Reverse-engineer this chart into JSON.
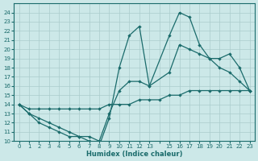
{
  "background_color": "#cce8e8",
  "grid_color": "#aacccc",
  "line_color": "#1a6b6b",
  "xlabel": "Humidex (Indice chaleur)",
  "xlim": [
    -0.5,
    23.5
  ],
  "ylim": [
    10,
    25
  ],
  "xticks": [
    0,
    1,
    2,
    3,
    4,
    5,
    6,
    7,
    8,
    9,
    10,
    11,
    12,
    13,
    14,
    15,
    16,
    17,
    18,
    19,
    20,
    21,
    22,
    23
  ],
  "yticks": [
    10,
    11,
    12,
    13,
    14,
    15,
    16,
    17,
    18,
    19,
    20,
    21,
    22,
    23,
    24
  ],
  "xtick_labels": [
    "0",
    "1",
    "2",
    "3",
    "4",
    "5",
    "6",
    "7",
    "8",
    "9",
    "10",
    "11",
    "12",
    "13",
    "",
    "15",
    "16",
    "17",
    "18",
    "19",
    "20",
    "21",
    "22",
    "23"
  ],
  "line_spiky_x": [
    0,
    1,
    2,
    3,
    4,
    5,
    6,
    7,
    8,
    9,
    10,
    11,
    12,
    13,
    15,
    16,
    17,
    18,
    19,
    20,
    21,
    22,
    23
  ],
  "line_spiky_y": [
    14.0,
    13.0,
    12.0,
    11.5,
    11.0,
    10.5,
    10.5,
    10.0,
    9.5,
    12.5,
    18.0,
    21.5,
    22.5,
    16.0,
    21.5,
    24.0,
    23.5,
    20.5,
    19.0,
    18.0,
    17.5,
    16.5,
    15.5
  ],
  "line_mid_x": [
    0,
    1,
    2,
    3,
    4,
    5,
    6,
    7,
    8,
    9,
    10,
    11,
    12,
    13,
    15,
    16,
    17,
    18,
    19,
    20,
    21,
    22,
    23
  ],
  "line_mid_y": [
    14.0,
    13.0,
    12.5,
    12.0,
    11.5,
    11.0,
    10.5,
    10.5,
    10.0,
    13.0,
    15.5,
    16.5,
    16.5,
    16.0,
    17.5,
    20.5,
    20.0,
    19.5,
    19.0,
    19.0,
    19.5,
    18.0,
    15.5
  ],
  "line_low_x": [
    0,
    1,
    2,
    3,
    4,
    5,
    6,
    7,
    8,
    9,
    10,
    11,
    12,
    13,
    14,
    15,
    16,
    17,
    18,
    19,
    20,
    21,
    22,
    23
  ],
  "line_low_y": [
    14.0,
    13.5,
    13.5,
    13.5,
    13.5,
    13.5,
    13.5,
    13.5,
    13.5,
    14.0,
    14.0,
    14.0,
    14.5,
    14.5,
    14.5,
    15.0,
    15.0,
    15.5,
    15.5,
    15.5,
    15.5,
    15.5,
    15.5,
    15.5
  ]
}
